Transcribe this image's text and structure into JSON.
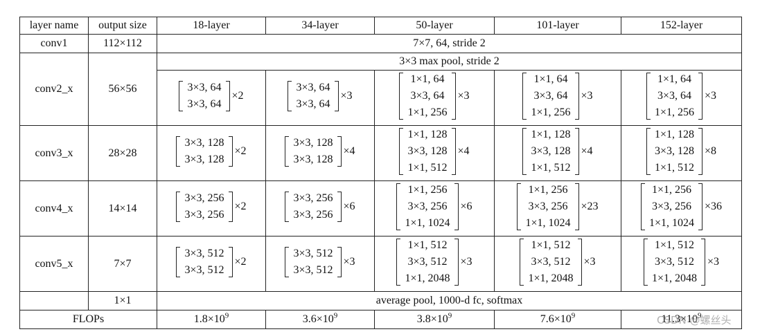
{
  "table": {
    "header": [
      "layer name",
      "output size",
      "18-layer",
      "34-layer",
      "50-layer",
      "101-layer",
      "152-layer"
    ],
    "rows": [
      {
        "name": "conv1",
        "output": "112×112",
        "spec": "7×7, 64, stride 2"
      },
      {
        "name": "conv2_x",
        "output": "56×56",
        "pool": "3×3 max pool, stride 2",
        "blocks": [
          {
            "layers": [
              "3×3, 64",
              "3×3, 64"
            ],
            "repeat": "×2"
          },
          {
            "layers": [
              "3×3, 64",
              "3×3, 64"
            ],
            "repeat": "×3"
          },
          {
            "layers": [
              "1×1, 64",
              "3×3, 64",
              "1×1, 256"
            ],
            "repeat": "×3"
          },
          {
            "layers": [
              "1×1, 64",
              "3×3, 64",
              "1×1, 256"
            ],
            "repeat": "×3"
          },
          {
            "layers": [
              "1×1, 64",
              "3×3, 64",
              "1×1, 256"
            ],
            "repeat": "×3"
          }
        ]
      },
      {
        "name": "conv3_x",
        "output": "28×28",
        "blocks": [
          {
            "layers": [
              "3×3, 128",
              "3×3, 128"
            ],
            "repeat": "×2"
          },
          {
            "layers": [
              "3×3, 128",
              "3×3, 128"
            ],
            "repeat": "×4"
          },
          {
            "layers": [
              "1×1, 128",
              "3×3, 128",
              "1×1, 512"
            ],
            "repeat": "×4"
          },
          {
            "layers": [
              "1×1, 128",
              "3×3, 128",
              "1×1, 512"
            ],
            "repeat": "×4"
          },
          {
            "layers": [
              "1×1, 128",
              "3×3, 128",
              "1×1, 512"
            ],
            "repeat": "×8"
          }
        ]
      },
      {
        "name": "conv4_x",
        "output": "14×14",
        "blocks": [
          {
            "layers": [
              "3×3, 256",
              "3×3, 256"
            ],
            "repeat": "×2"
          },
          {
            "layers": [
              "3×3, 256",
              "3×3, 256"
            ],
            "repeat": "×6"
          },
          {
            "layers": [
              "1×1, 256",
              "3×3, 256",
              "1×1, 1024"
            ],
            "repeat": "×6"
          },
          {
            "layers": [
              "1×1, 256",
              "3×3, 256",
              "1×1, 1024"
            ],
            "repeat": "×23"
          },
          {
            "layers": [
              "1×1, 256",
              "3×3, 256",
              "1×1, 1024"
            ],
            "repeat": "×36"
          }
        ]
      },
      {
        "name": "conv5_x",
        "output": "7×7",
        "blocks": [
          {
            "layers": [
              "3×3, 512",
              "3×3, 512"
            ],
            "repeat": "×2"
          },
          {
            "layers": [
              "3×3, 512",
              "3×3, 512"
            ],
            "repeat": "×3"
          },
          {
            "layers": [
              "1×1, 512",
              "3×3, 512",
              "1×1, 2048"
            ],
            "repeat": "×3"
          },
          {
            "layers": [
              "1×1, 512",
              "3×3, 512",
              "1×1, 2048"
            ],
            "repeat": "×3"
          },
          {
            "layers": [
              "1×1, 512",
              "3×3, 512",
              "1×1, 2048"
            ],
            "repeat": "×3"
          }
        ]
      },
      {
        "output": "1×1",
        "spec": "average pool, 1000-d fc, softmax"
      }
    ],
    "flops": {
      "label": "FLOPs",
      "values": [
        {
          "base": "1.8×10",
          "exp": "9"
        },
        {
          "base": "3.6×10",
          "exp": "9"
        },
        {
          "base": "3.8×10",
          "exp": "9"
        },
        {
          "base": "7.6×10",
          "exp": "9"
        },
        {
          "base": "11.3×10",
          "exp": "9"
        }
      ]
    }
  },
  "watermark": "CSDN @螺丝头"
}
